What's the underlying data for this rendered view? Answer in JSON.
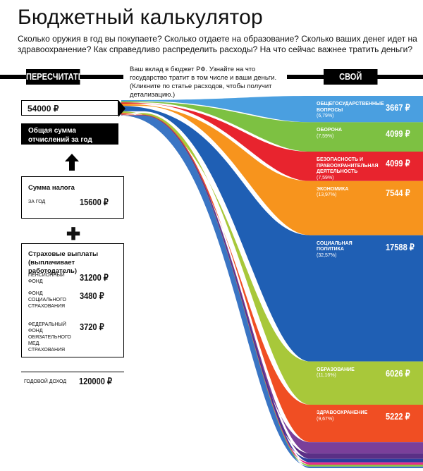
{
  "page": {
    "title": "Бюджетный калькулятор",
    "intro": "Сколько оружия в год вы покупаете? Сколько отдаете на образование? Сколько ваших денег идет на здравоохранение? Как справедливо распределить расходы? На что сейчас важнее тратить деньги?"
  },
  "controls": {
    "recalc_label": "ПЕРЕСЧИТАТЬ",
    "own_variant_label": "СВОЙ ВАРИАНТ",
    "note": "Ваш вклад в бюджет РФ. Узнайте на что государство тратит в том числе и ваши деньги. (Кликните по статье расходов, чтобы получит детализацию.)"
  },
  "income": {
    "value": "54000 ₽",
    "total_label": "Общая сумма отчислений за год"
  },
  "tax": {
    "title": "Сумма налога",
    "period_label": "ЗА ГОД",
    "value": "15600 ₽"
  },
  "insurance": {
    "title": "Страховые выплаты (выплачивает работодатель)",
    "items": [
      {
        "label": "ПЕНСИОННЫЙ ФОНД",
        "value": "31200 ₽"
      },
      {
        "label": "ФОНД СОЦИАЛЬНОГО СТРАХОВАНИЯ",
        "value": "3480 ₽"
      },
      {
        "label": "ФЕДЕРАЛЬНЫЙ ФОНД ОБЯЗАТЕЛЬНОГО МЕД. СТРАХОВАНИЯ",
        "value": "3720 ₽"
      }
    ]
  },
  "annual": {
    "label": "ГОДОВОЙ ДОХОД",
    "value": "120000 ₽"
  },
  "segments": [
    {
      "name": "ОБЩЕГОСУДАРСТВЕННЫЕ ВОПРОСЫ",
      "pct": "(6,79%)",
      "value": "3667 ₽",
      "color": "#4a9fe0",
      "share": 6.79
    },
    {
      "name": "ОБОРОНА",
      "pct": "(7,59%)",
      "value": "4099 ₽",
      "color": "#7dc142",
      "share": 7.59
    },
    {
      "name": "БЕЗОПАСНОСТЬ И ПРАВООХРАНИТЕЛЬНАЯ ДЕЯТЕЛЬНОСТЬ",
      "pct": "(7,59%)",
      "value": "4099 ₽",
      "color": "#e8242e",
      "share": 7.59
    },
    {
      "name": "ЭКОНОМИКА",
      "pct": "(13,97%)",
      "value": "7544 ₽",
      "color": "#f7941d",
      "share": 13.97
    },
    {
      "name": "СОЦИАЛЬНАЯ ПОЛИТИКА",
      "pct": "(32,57%)",
      "value": "17588 ₽",
      "color": "#1f5fb4",
      "share": 32.57
    },
    {
      "name": "ОБРАЗОВАНИЕ",
      "pct": "(11,16%)",
      "value": "6026 ₽",
      "color": "#a8c83a",
      "share": 11.16
    },
    {
      "name": "ЗДРАВООХРАНЕНИЕ",
      "pct": "(9,67%)",
      "value": "5222 ₽",
      "color": "#f04e23",
      "share": 9.67
    }
  ],
  "extra_bands": [
    {
      "color": "#7a3f9a",
      "share": 2.9
    },
    {
      "color": "#5a2f86",
      "share": 1.4
    },
    {
      "color": "#2b3f9e",
      "share": 0.9
    },
    {
      "color": "#e42f8a",
      "share": 0.6
    },
    {
      "color": "#8cc63f",
      "share": 0.5
    },
    {
      "color": "#3a75c4",
      "share": 0.4
    }
  ]
}
